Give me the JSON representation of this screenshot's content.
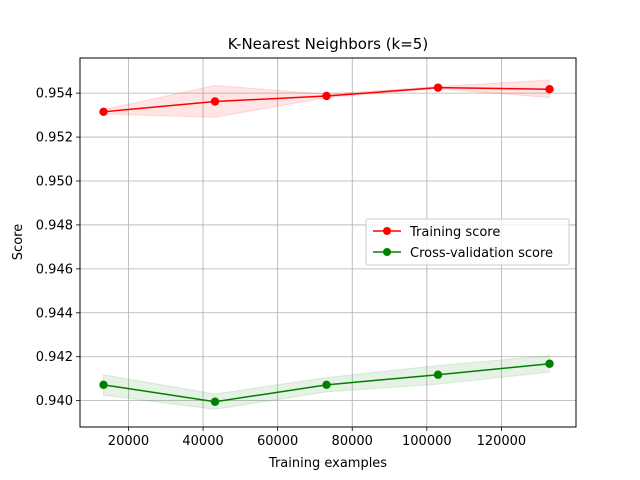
{
  "chart_data": {
    "type": "line",
    "title": "K-Nearest Neighbors (k=5)",
    "xlabel": "Training examples",
    "ylabel": "Score",
    "xlim": [
      7000,
      140000
    ],
    "ylim": [
      0.9388,
      0.9556
    ],
    "xticks": [
      20000,
      40000,
      60000,
      80000,
      100000,
      120000
    ],
    "yticks": [
      0.94,
      0.942,
      0.944,
      0.946,
      0.948,
      0.95,
      0.952,
      0.954
    ],
    "grid": true,
    "legend_position": "center-right",
    "x": [
      13300,
      43200,
      73100,
      103000,
      132900
    ],
    "series": [
      {
        "name": "Training score",
        "color": "#ff0000",
        "values": [
          0.95315,
          0.95362,
          0.95387,
          0.95425,
          0.95418
        ],
        "band_lower": [
          0.95305,
          0.9529,
          0.9538,
          0.9542,
          0.9538
        ],
        "band_upper": [
          0.95325,
          0.95435,
          0.95395,
          0.9543,
          0.9546
        ]
      },
      {
        "name": "Cross-validation score",
        "color": "#008000",
        "values": [
          0.94072,
          0.93995,
          0.94072,
          0.94118,
          0.94168
        ],
        "band_lower": [
          0.94025,
          0.9396,
          0.9404,
          0.94075,
          0.9413
        ],
        "band_upper": [
          0.94118,
          0.9403,
          0.94105,
          0.9416,
          0.94205
        ]
      }
    ]
  }
}
